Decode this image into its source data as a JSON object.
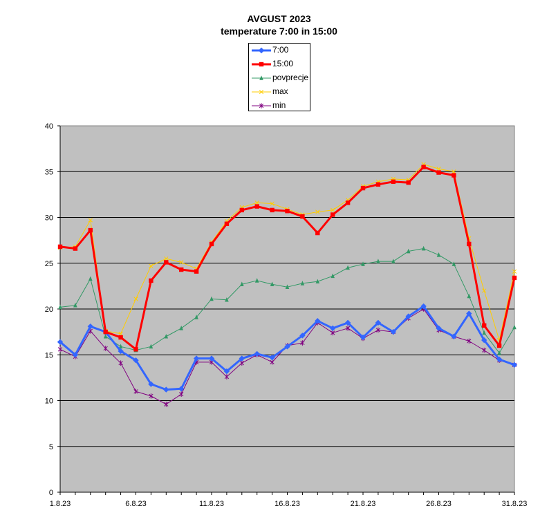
{
  "chart_data": {
    "type": "line",
    "title": "AVGUST 2023",
    "subtitle": "temperature 7:00 in 15:00",
    "xlabel": "",
    "ylabel": "",
    "ylim": [
      0,
      40
    ],
    "y_ticks": [
      "0",
      "5",
      "10",
      "15",
      "20",
      "25",
      "30",
      "35",
      "40"
    ],
    "x_tick_labels": [
      {
        "day": 1,
        "label": "1.8.23"
      },
      {
        "day": 6,
        "label": "6.8.23"
      },
      {
        "day": 11,
        "label": "11.8.23"
      },
      {
        "day": 16,
        "label": "16.8.23"
      },
      {
        "day": 21,
        "label": "21.8.23"
      },
      {
        "day": 26,
        "label": "26.8.23"
      },
      {
        "day": 31,
        "label": "31.8.23"
      }
    ],
    "x": [
      1,
      2,
      3,
      4,
      5,
      6,
      7,
      8,
      9,
      10,
      11,
      12,
      13,
      14,
      15,
      16,
      17,
      18,
      19,
      20,
      21,
      22,
      23,
      24,
      25,
      26,
      27,
      28,
      29,
      30,
      31
    ],
    "grid": "horizontal",
    "plot_background": "#c0c0c0",
    "legend_position": "top-center",
    "series": [
      {
        "name": "7:00",
        "color": "#3366ff",
        "marker": "diamond",
        "width": 3,
        "values": [
          16.4,
          15.0,
          18.1,
          17.5,
          15.4,
          14.4,
          11.8,
          11.2,
          11.3,
          14.6,
          14.6,
          13.2,
          14.6,
          15.1,
          14.7,
          15.9,
          17.1,
          18.7,
          17.9,
          18.5,
          16.9,
          18.5,
          17.5,
          19.2,
          20.3,
          17.9,
          17.0,
          19.5,
          16.6,
          14.5,
          13.9
        ]
      },
      {
        "name": "15:00",
        "color": "#ff0000",
        "marker": "square",
        "width": 3,
        "values": [
          26.8,
          26.6,
          28.6,
          17.5,
          16.9,
          15.6,
          23.1,
          25.1,
          24.3,
          24.1,
          27.1,
          29.3,
          30.8,
          31.2,
          30.8,
          30.7,
          30.1,
          28.3,
          30.3,
          31.6,
          33.2,
          33.6,
          33.9,
          33.8,
          35.5,
          34.9,
          34.6,
          27.1,
          18.2,
          16.0,
          23.4
        ]
      },
      {
        "name": "povprecje",
        "color": "#339966",
        "marker": "triangle",
        "width": 1,
        "values": [
          20.2,
          20.4,
          23.3,
          17.0,
          15.9,
          15.5,
          15.9,
          17.0,
          17.9,
          19.1,
          21.1,
          21.0,
          22.7,
          23.1,
          22.7,
          22.4,
          22.8,
          23.0,
          23.6,
          24.5,
          24.9,
          25.2,
          25.2,
          26.3,
          26.6,
          25.9,
          24.9,
          21.4,
          17.4,
          15.2,
          18.0
        ]
      },
      {
        "name": "max",
        "color": "#ffcc00",
        "marker": "x",
        "width": 1,
        "values": [
          26.7,
          26.8,
          29.7,
          17.6,
          17.3,
          21.1,
          24.7,
          25.5,
          25.1,
          24.4,
          27.3,
          29.6,
          31.1,
          31.6,
          31.5,
          30.9,
          30.3,
          30.6,
          30.8,
          31.9,
          33.4,
          33.9,
          34.2,
          34.1,
          35.8,
          35.3,
          35.0,
          27.7,
          22.0,
          16.6,
          24.1
        ]
      },
      {
        "name": "min",
        "color": "#800080",
        "marker": "star",
        "width": 1,
        "values": [
          15.6,
          14.8,
          17.6,
          15.7,
          14.1,
          11.0,
          10.5,
          9.6,
          10.7,
          14.2,
          14.2,
          12.6,
          14.1,
          15.0,
          14.2,
          16.0,
          16.3,
          18.5,
          17.4,
          17.9,
          16.8,
          17.7,
          17.5,
          19.0,
          20.0,
          17.7,
          17.0,
          16.5,
          15.5,
          14.4,
          13.9
        ]
      }
    ]
  }
}
